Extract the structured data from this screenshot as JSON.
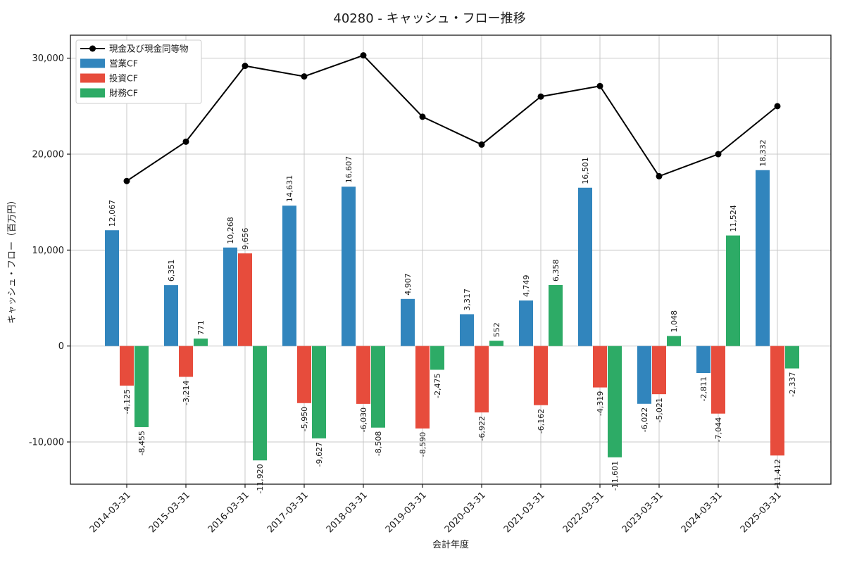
{
  "title": "40280 - キャッシュ・フロー推移",
  "chart_data": {
    "type": "bar",
    "subtype": "grouped-bars-with-line-overlay",
    "categories": [
      "2014-03-31",
      "2015-03-31",
      "2016-03-31",
      "2017-03-31",
      "2018-03-31",
      "2019-03-31",
      "2020-03-31",
      "2021-03-31",
      "2022-03-31",
      "2023-03-31",
      "2024-03-31",
      "2025-03-31"
    ],
    "series": [
      {
        "name": "営業CF",
        "type": "bar",
        "color": "#3185bd",
        "values": [
          12067,
          6351,
          10268,
          14631,
          16607,
          4907,
          3317,
          4749,
          16501,
          -6022,
          -2811,
          18332
        ]
      },
      {
        "name": "投資CF",
        "type": "bar",
        "color": "#e74c3c",
        "values": [
          -4125,
          -3214,
          9656,
          -5950,
          -6030,
          -8590,
          -6922,
          -6162,
          -4319,
          -5021,
          -7044,
          -11412
        ]
      },
      {
        "name": "財務CF",
        "type": "bar",
        "color": "#2dab66",
        "values": [
          -8455,
          771,
          -11920,
          -9627,
          -8508,
          -2475,
          552,
          6358,
          -11601,
          1048,
          11524,
          -2337
        ]
      }
    ],
    "line_series": {
      "name": "現金及び現金同等物",
      "type": "line",
      "color": "#000000",
      "values_estimated_from_gridlines": true,
      "values": [
        17200,
        21300,
        29200,
        28100,
        30300,
        23900,
        21000,
        26000,
        27100,
        17700,
        20000,
        25000
      ]
    },
    "title": "40280 - キャッシュ・フロー推移",
    "xlabel": "会計年度",
    "ylabel": "キャッシュ・フロー（百万円）",
    "yticks": [
      -10000,
      0,
      10000,
      20000,
      30000
    ],
    "ylim": [
      -14400,
      32400
    ],
    "grid": true,
    "legend_position": "upper-left",
    "bar_labels_visible": true,
    "colors": {
      "grid": "#c9c9c9",
      "axis_border": "#1a1a1a",
      "legend_border": "#cccccc",
      "legend_bg": "#ffffff"
    }
  }
}
